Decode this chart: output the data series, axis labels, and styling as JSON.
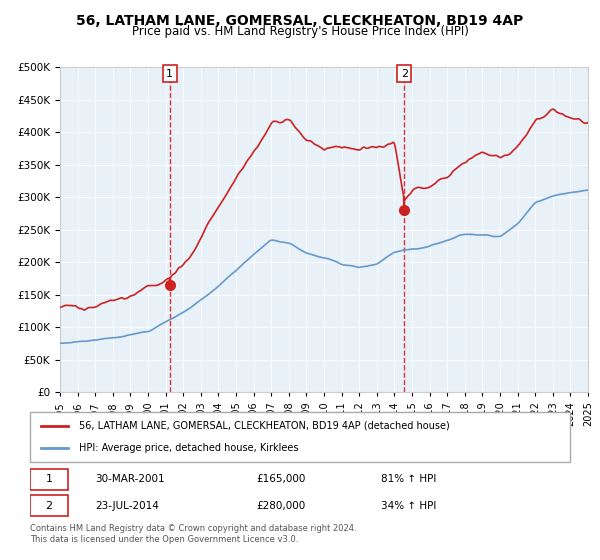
{
  "title": "56, LATHAM LANE, GOMERSAL, CLECKHEATON, BD19 4AP",
  "subtitle": "Price paid vs. HM Land Registry's House Price Index (HPI)",
  "legend_line1": "56, LATHAM LANE, GOMERSAL, CLECKHEATON, BD19 4AP (detached house)",
  "legend_line2": "HPI: Average price, detached house, Kirklees",
  "footnote1": "Contains HM Land Registry data © Crown copyright and database right 2024.",
  "footnote2": "This data is licensed under the Open Government Licence v3.0.",
  "transaction1_label": "1",
  "transaction1_date": "30-MAR-2001",
  "transaction1_price": "£165,000",
  "transaction1_hpi": "81% ↑ HPI",
  "transaction1_year": 2001.24,
  "transaction1_value": 165000,
  "transaction2_label": "2",
  "transaction2_date": "23-JUL-2014",
  "transaction2_price": "£280,000",
  "transaction2_hpi": "34% ↑ HPI",
  "transaction2_year": 2014.56,
  "transaction2_value": 280000,
  "hpi_color": "#6699cc",
  "price_color": "#cc2222",
  "marker_color": "#cc2222",
  "vline_color": "#dd3333",
  "background_color": "#ddeeff",
  "plot_bg": "#e8f0f8",
  "ylim": [
    0,
    500000
  ],
  "xlim_start": 1995,
  "xlim_end": 2025,
  "yticks": [
    0,
    50000,
    100000,
    150000,
    200000,
    250000,
    300000,
    350000,
    400000,
    450000,
    500000
  ],
  "xticks": [
    1995,
    1996,
    1997,
    1998,
    1999,
    2000,
    2001,
    2002,
    2003,
    2004,
    2005,
    2006,
    2007,
    2008,
    2009,
    2010,
    2011,
    2012,
    2013,
    2014,
    2015,
    2016,
    2017,
    2018,
    2019,
    2020,
    2021,
    2022,
    2023,
    2024,
    2025
  ]
}
